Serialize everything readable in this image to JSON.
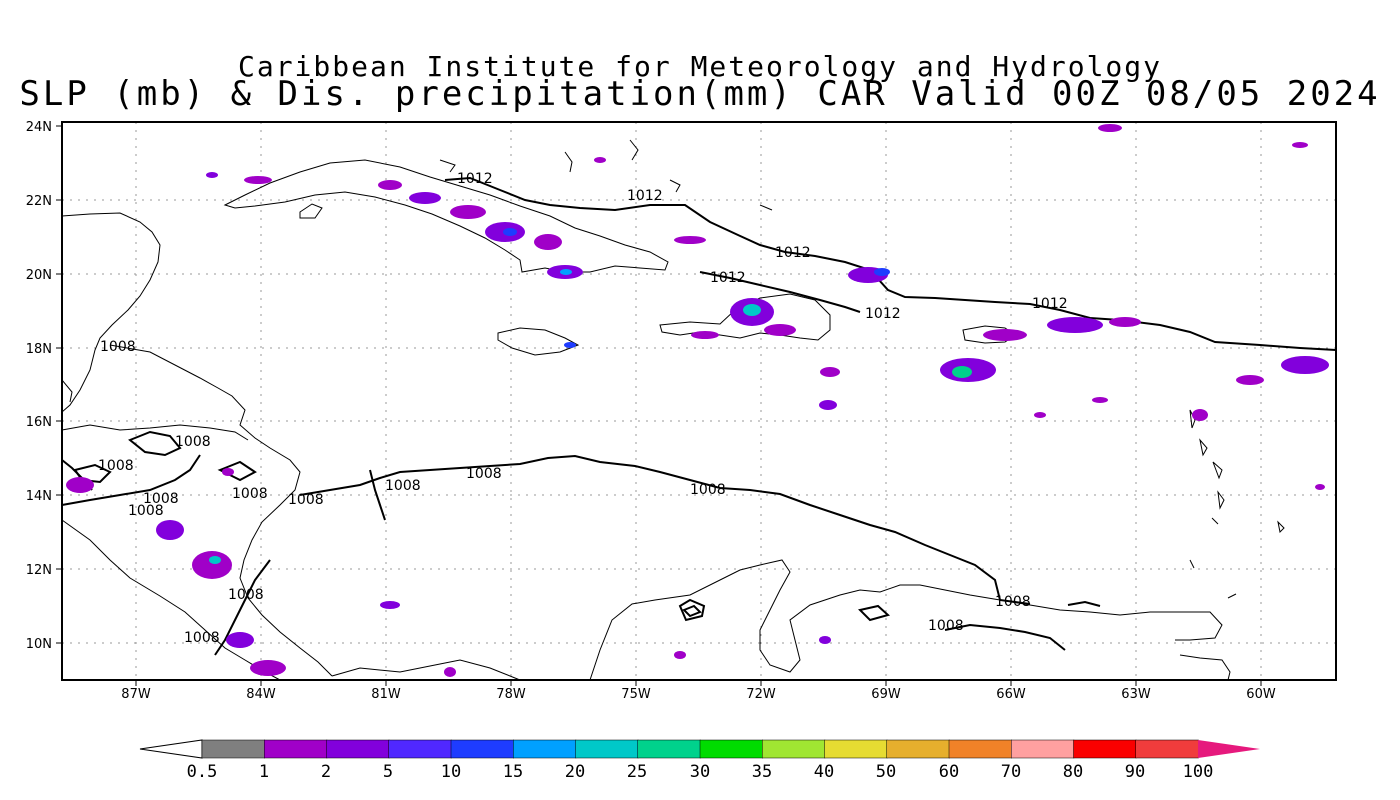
{
  "title_line1": "Caribbean Institute for Meteorology and Hydrology",
  "title_line2": "SLP (mb) & Dis. precipitation(mm) CAR Valid 00Z 08/05 2024",
  "lat_ticks": [
    "24N",
    "22N",
    "20N",
    "18N",
    "16N",
    "14N",
    "12N",
    "10N"
  ],
  "lon_ticks": [
    "87W",
    "84W",
    "81W",
    "78W",
    "75W",
    "72W",
    "69W",
    "66W",
    "63W",
    "60W"
  ],
  "isobar_labels": [
    "1012",
    "1012",
    "1012",
    "1012",
    "1012",
    "1012",
    "1008",
    "1008",
    "1008",
    "1008",
    "1008",
    "1008",
    "1008",
    "1008",
    "1008",
    "1008",
    "1008",
    "1008",
    "1008",
    "1008"
  ],
  "colorbar": {
    "labels": [
      "0.5",
      "1",
      "2",
      "5",
      "10",
      "15",
      "20",
      "25",
      "30",
      "35",
      "40",
      "50",
      "60",
      "70",
      "80",
      "90",
      "100"
    ],
    "colors": [
      "#7f7f7f",
      "#a000c8",
      "#8200dc",
      "#5028ff",
      "#1e3cff",
      "#00a0ff",
      "#00c8c8",
      "#00d28c",
      "#00dc00",
      "#a0e632",
      "#e6dc32",
      "#e6af2d",
      "#f08228",
      "#ffa0a0",
      "#fa0000",
      "#f03c3c"
    ],
    "low_color": "#ffffff",
    "high_color": "#e6197d"
  },
  "colors": {
    "coast": "#000000",
    "grid": "#9a9a9a",
    "frame": "#000000"
  }
}
